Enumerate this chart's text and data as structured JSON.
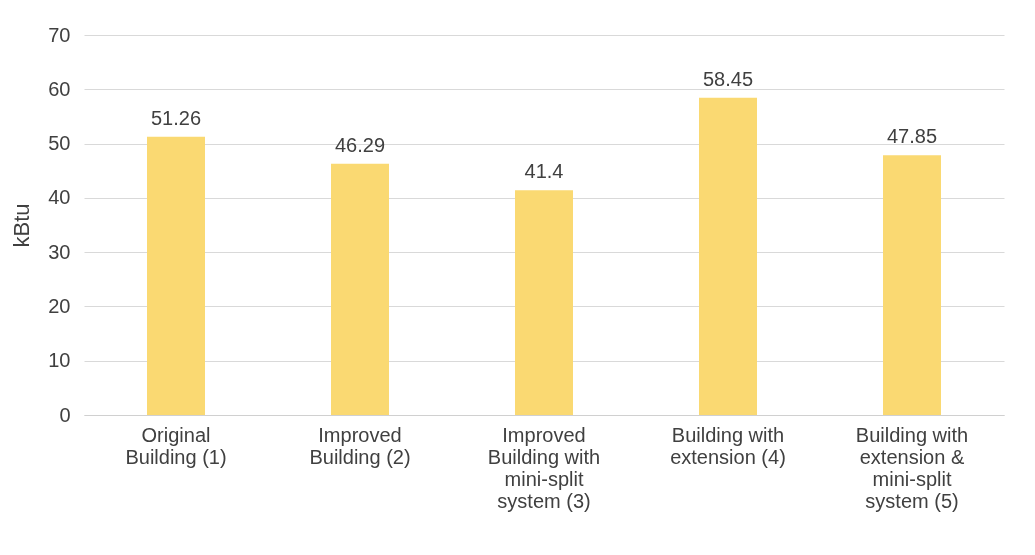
{
  "chart_data": {
    "type": "bar",
    "ylabel": "kBtu",
    "categories": [
      "Original Building (1)",
      "Improved Building (2)",
      "Improved Building with mini-split system (3)",
      "Building with extension (4)",
      "Building with extension & mini-split system (5)"
    ],
    "values": [
      51.26,
      46.29,
      41.4,
      58.45,
      47.85
    ],
    "color": "#fad972",
    "ylim": [
      0,
      70
    ],
    "yticks": [
      0,
      10,
      20,
      30,
      40,
      50,
      60,
      70
    ],
    "grid": "y",
    "data_labels": true
  }
}
